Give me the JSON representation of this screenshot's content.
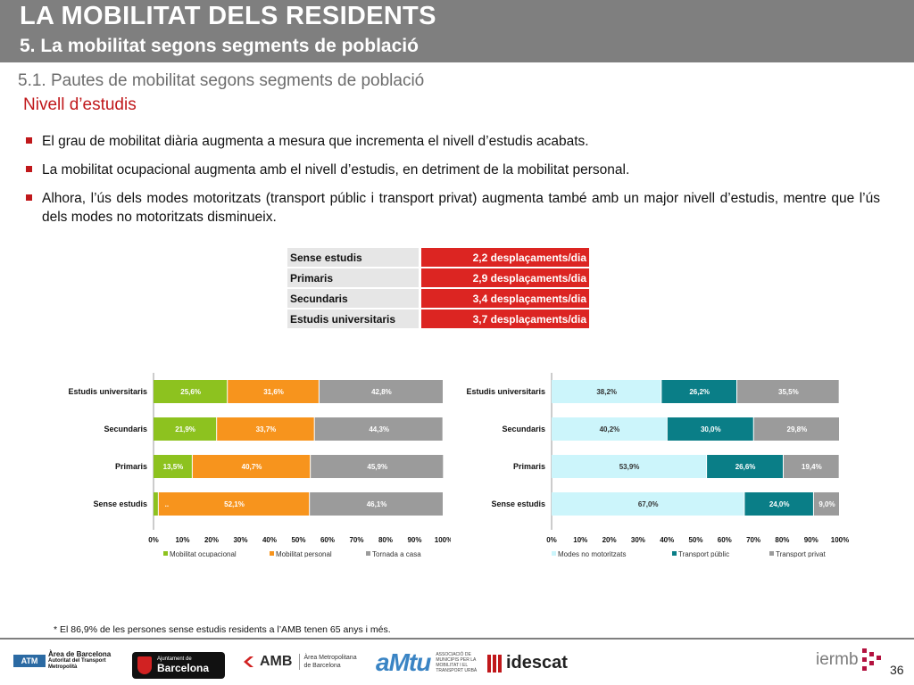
{
  "header": {
    "title": "LA MOBILITAT DELS RESIDENTS",
    "subtitle": "5. La mobilitat segons segments de població"
  },
  "section": {
    "title": "5.1. Pautes de mobilitat segons segments de població",
    "subtitle": "Nivell d’estudis"
  },
  "bullets": [
    "El grau de mobilitat diària augmenta a mesura que incrementa el nivell d’estudis acabats.",
    "La mobilitat ocupacional augmenta amb el nivell d’estudis, en detriment de la mobilitat personal.",
    "Alhora, l’ús dels modes motoritzats (transport públic i transport privat) augmenta també amb un major nivell d’estudis, mentre que l’ús dels modes no motoritzats disminueix."
  ],
  "trips_table": [
    {
      "label": "Sense estudis",
      "value": "2,2 desplaçaments/dia"
    },
    {
      "label": "Primaris",
      "value": "2,9 desplaçaments/dia"
    },
    {
      "label": "Secundaris",
      "value": "3,4 desplaçaments/dia"
    },
    {
      "label": "Estudis universitaris",
      "value": "3,7 desplaçaments/dia"
    }
  ],
  "chart_data": [
    {
      "type": "bar",
      "orientation": "horizontal",
      "stacked": "percent",
      "categories": [
        "Estudis universitaris",
        "Secundaris",
        "Primaris",
        "Sense estudis"
      ],
      "series": [
        {
          "name": "Mobilitat ocupacional",
          "color": "#8dc21f",
          "values": [
            25.6,
            21.9,
            13.5,
            1.8
          ],
          "labels": [
            "25,6%",
            "21,9%",
            "13,5%",
            ""
          ]
        },
        {
          "name": "Mobilitat personal",
          "color": "#f7941d",
          "values": [
            31.6,
            33.7,
            40.7,
            52.1
          ],
          "labels": [
            "31,6%",
            "33,7%",
            "40,7%",
            "52,1%"
          ]
        },
        {
          "name": "Tornada a casa",
          "color": "#9b9b9b",
          "values": [
            42.8,
            44.3,
            45.9,
            46.1
          ],
          "labels": [
            "42,8%",
            "44,3%",
            "45,9%",
            "46,1%"
          ]
        }
      ],
      "extra_labels": [
        {
          "category": "Sense estudis",
          "text": ".."
        }
      ],
      "xticks": [
        "0%",
        "10%",
        "20%",
        "30%",
        "40%",
        "50%",
        "60%",
        "70%",
        "80%",
        "90%",
        "100%"
      ],
      "xlim": [
        0,
        100
      ],
      "legend": "bottom",
      "grid": false
    },
    {
      "type": "bar",
      "orientation": "horizontal",
      "stacked": "percent",
      "categories": [
        "Estudis universitaris",
        "Secundaris",
        "Primaris",
        "Sense estudis"
      ],
      "series": [
        {
          "name": "Modes no motoritzats",
          "color": "#ccf5fb",
          "values": [
            38.2,
            40.2,
            53.9,
            67.0
          ],
          "labels": [
            "38,2%",
            "40,2%",
            "53,9%",
            "67,0%"
          ]
        },
        {
          "name": "Transport públic",
          "color": "#0a7e87",
          "values": [
            26.2,
            30.0,
            26.6,
            24.0
          ],
          "labels": [
            "26,2%",
            "30,0%",
            "26,6%",
            "24,0%"
          ]
        },
        {
          "name": "Transport privat",
          "color": "#9b9b9b",
          "values": [
            35.5,
            29.8,
            19.4,
            9.0
          ],
          "labels": [
            "35,5%",
            "29,8%",
            "19,4%",
            "9,0%"
          ]
        }
      ],
      "xticks": [
        "0%",
        "10%",
        "20%",
        "30%",
        "40%",
        "50%",
        "60%",
        "70%",
        "80%",
        "90%",
        "100%"
      ],
      "xlim": [
        0,
        100
      ],
      "legend": "bottom",
      "grid": false
    }
  ],
  "footnote": "* El 86,9% de les persones sense estudis residents a l’AMB tenen 65 anys i més.",
  "footer": {
    "atm_badge": "ATM",
    "atm_name": "Àrea de Barcelona",
    "atm_sub1": "Autoritat del Transport",
    "atm_sub2": "Metropolità",
    "ajb_small": "Ajuntament de",
    "ajb_big": "Barcelona",
    "amb_name": "AMB",
    "amb_sub": "Àrea Metropolitana de Barcelona",
    "amtu_name": "aMtu",
    "amtu_sub": "ASSOCIACIÓ DE MUNICIPIS PER LA MOBILITAT I EL TRANSPORT URBÀ",
    "idescat_name": "idescat",
    "iermb_name": "iermb",
    "page_number": "36"
  },
  "colors": {
    "header_band": "#7f7f7f",
    "accent_red": "#c0181b",
    "table_red": "#dc2522"
  }
}
